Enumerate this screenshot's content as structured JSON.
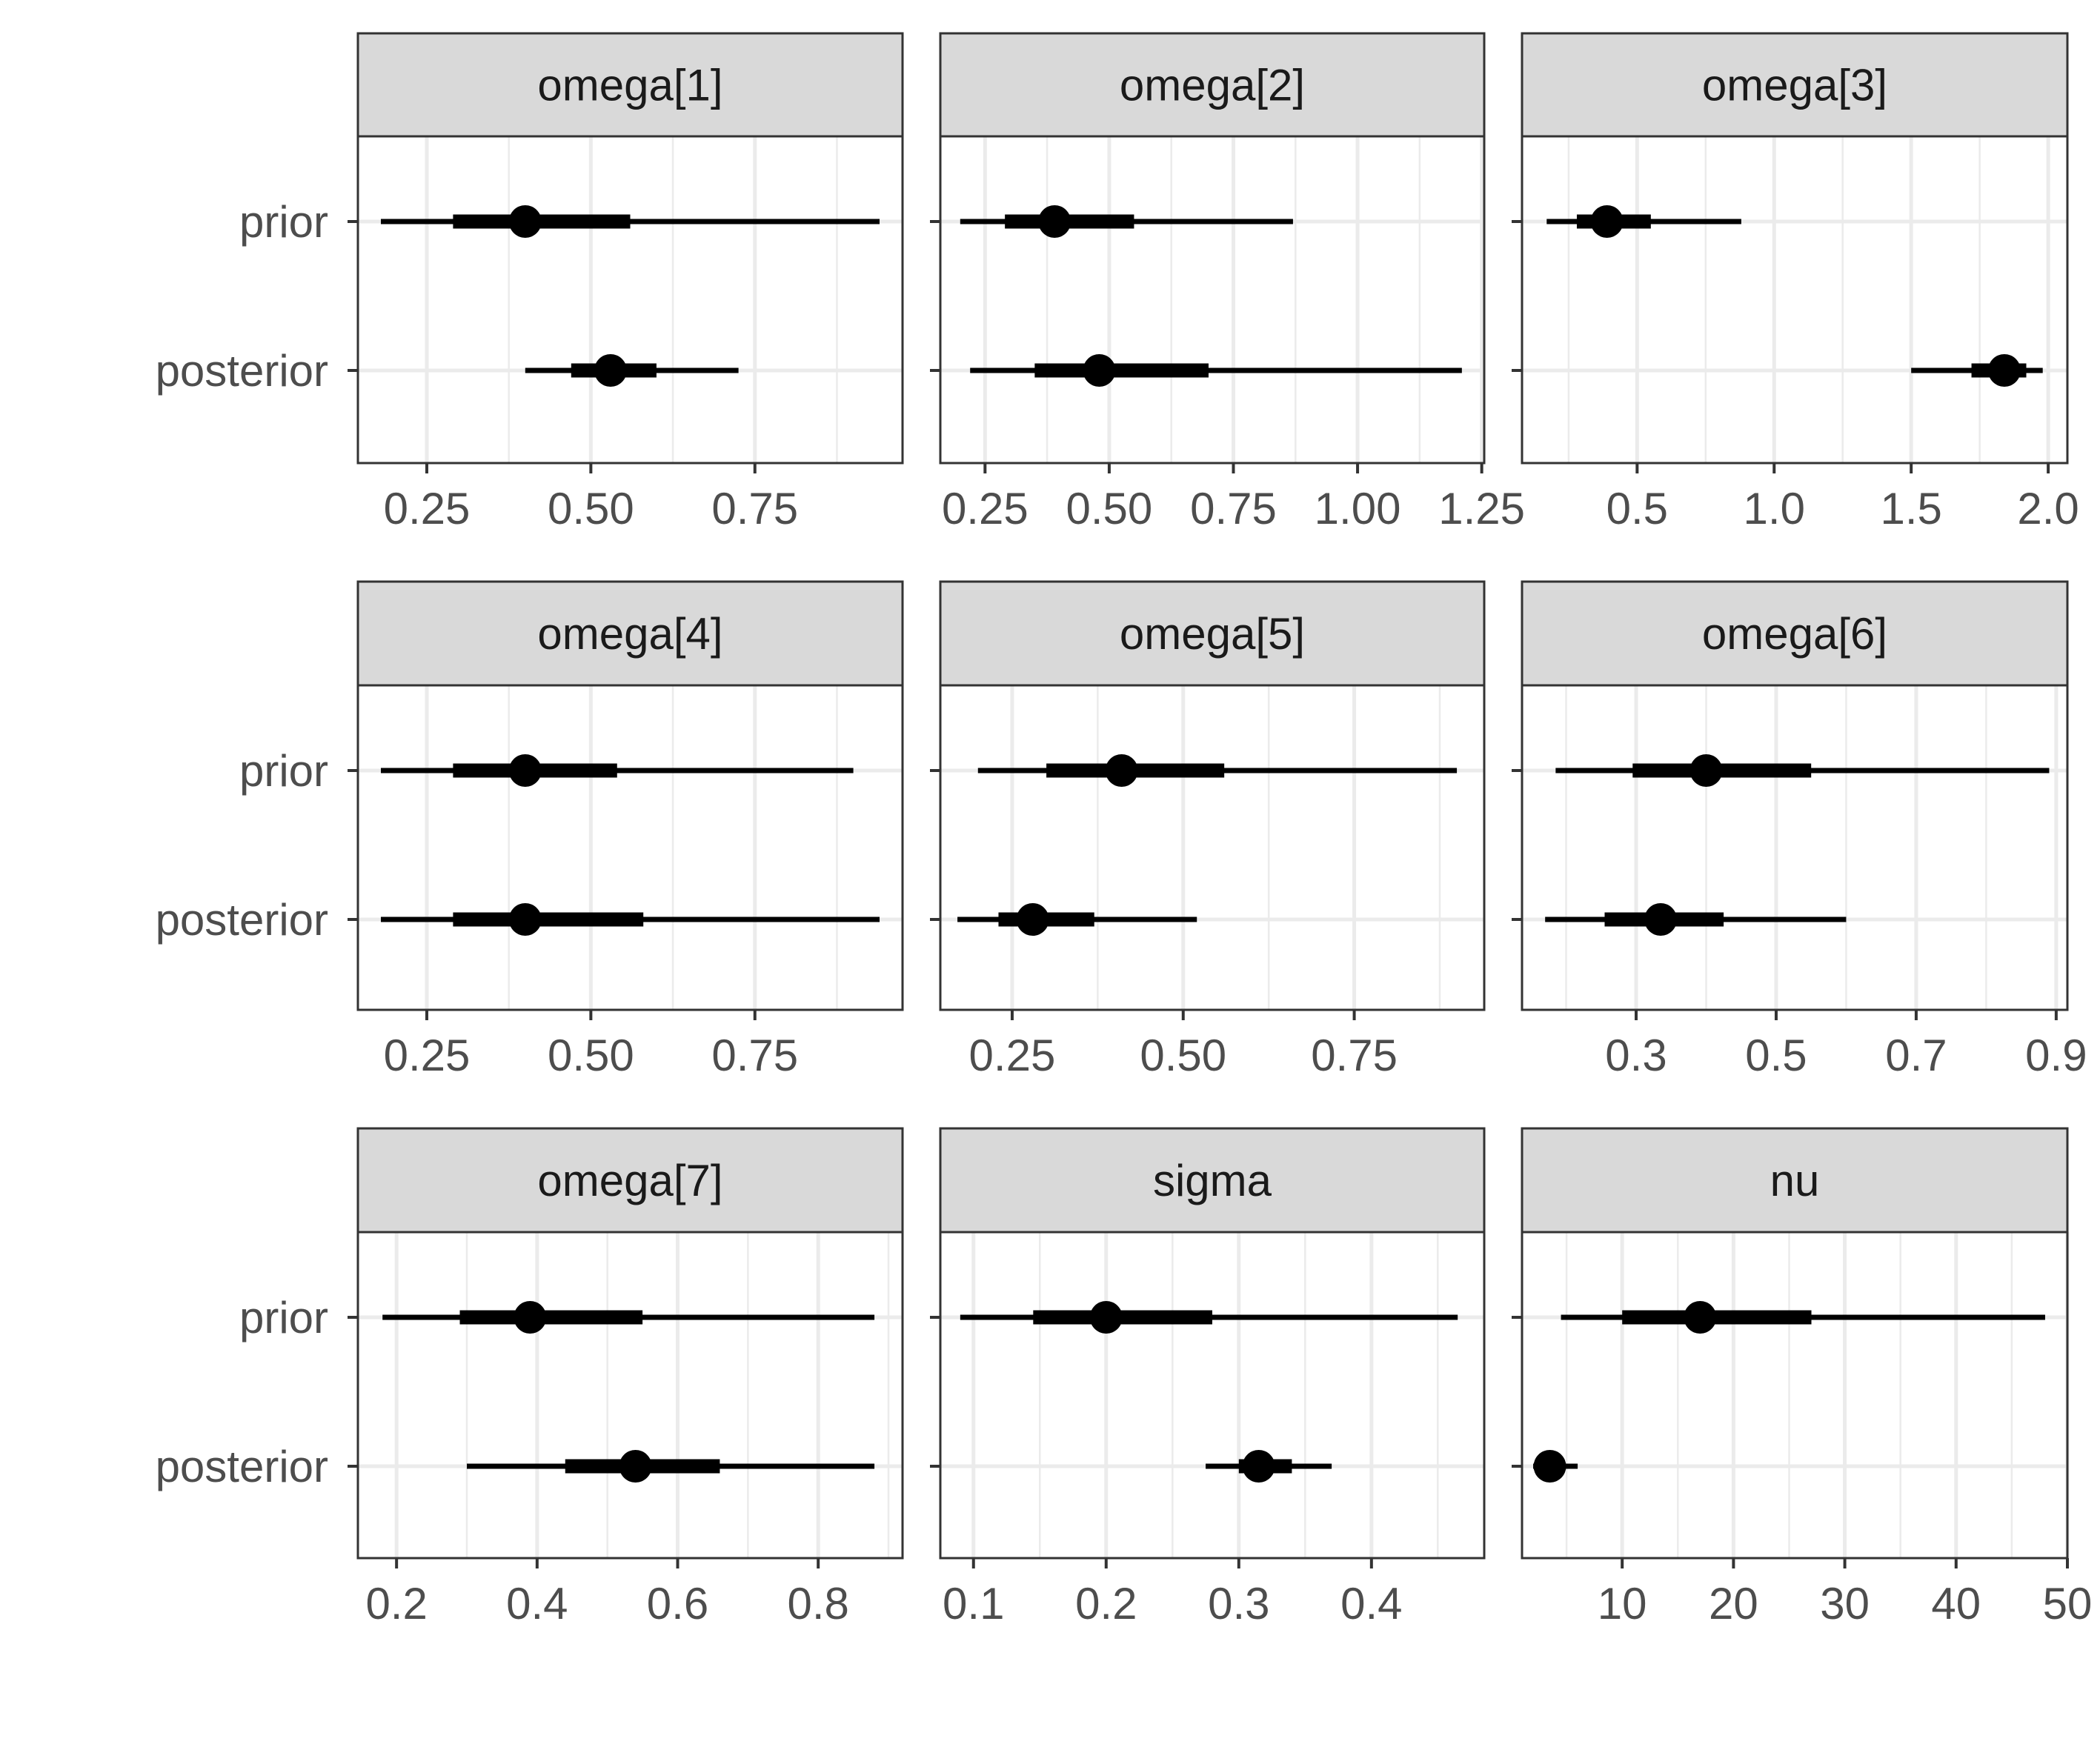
{
  "chart_data": {
    "type": "interval",
    "layout": {
      "rows": 3,
      "cols": 3
    },
    "y_categories": [
      "prior",
      "posterior"
    ],
    "grid": true,
    "colors": {
      "strip_fill": "#d9d9d9",
      "panel_border": "#333333",
      "grid": "#ebebeb",
      "mark": "#000000",
      "tick_text": "#4d4d4d",
      "strip_text": "#1a1a1a"
    },
    "panels": [
      {
        "title": "omega[1]",
        "xlim": [
          0.145,
          0.975
        ],
        "xticks": [
          "0.25",
          "0.50",
          "0.75"
        ],
        "tick_values": [
          0.25,
          0.5,
          0.75
        ],
        "intervals": [
          {
            "label": "prior",
            "outer": [
              0.18,
              0.94
            ],
            "inner": [
              0.29,
              0.56
            ],
            "point": 0.4
          },
          {
            "label": "posterior",
            "outer": [
              0.4,
              0.725
            ],
            "inner": [
              0.47,
              0.6
            ],
            "point": 0.53
          }
        ]
      },
      {
        "title": "omega[2]",
        "xlim": [
          0.16,
          1.255
        ],
        "xticks": [
          "0.25",
          "0.50",
          "0.75",
          "1.00",
          "1.25"
        ],
        "tick_values": [
          0.25,
          0.5,
          0.75,
          1.0,
          1.25
        ],
        "intervals": [
          {
            "label": "prior",
            "outer": [
              0.2,
              0.87
            ],
            "inner": [
              0.29,
              0.55
            ],
            "point": 0.39
          },
          {
            "label": "posterior",
            "outer": [
              0.22,
              1.21
            ],
            "inner": [
              0.35,
              0.7
            ],
            "point": 0.48
          }
        ]
      },
      {
        "title": "omega[3]",
        "xlim": [
          0.08,
          2.07
        ],
        "xticks": [
          "0.5",
          "1.0",
          "1.5",
          "2.0"
        ],
        "tick_values": [
          0.5,
          1.0,
          1.5,
          2.0
        ],
        "intervals": [
          {
            "label": "prior",
            "outer": [
              0.17,
              0.88
            ],
            "inner": [
              0.28,
              0.55
            ],
            "point": 0.39
          },
          {
            "label": "posterior",
            "outer": [
              1.5,
              1.98
            ],
            "inner": [
              1.72,
              1.92
            ],
            "point": 1.84
          }
        ]
      },
      {
        "title": "omega[4]",
        "xlim": [
          0.145,
          0.975
        ],
        "xticks": [
          "0.25",
          "0.50",
          "0.75"
        ],
        "tick_values": [
          0.25,
          0.5,
          0.75
        ],
        "intervals": [
          {
            "label": "prior",
            "outer": [
              0.18,
              0.9
            ],
            "inner": [
              0.29,
              0.54
            ],
            "point": 0.4
          },
          {
            "label": "posterior",
            "outer": [
              0.18,
              0.94
            ],
            "inner": [
              0.29,
              0.58
            ],
            "point": 0.4
          }
        ]
      },
      {
        "title": "omega[5]",
        "xlim": [
          0.145,
          0.94
        ],
        "xticks": [
          "0.25",
          "0.50",
          "0.75"
        ],
        "tick_values": [
          0.25,
          0.5,
          0.75
        ],
        "intervals": [
          {
            "label": "prior",
            "outer": [
              0.2,
              0.9
            ],
            "inner": [
              0.3,
              0.56
            ],
            "point": 0.41
          },
          {
            "label": "posterior",
            "outer": [
              0.17,
              0.52
            ],
            "inner": [
              0.23,
              0.37
            ],
            "point": 0.28
          }
        ]
      },
      {
        "title": "omega[6]",
        "xlim": [
          0.137,
          0.916
        ],
        "xticks": [
          "0.3",
          "0.5",
          "0.7",
          "0.9"
        ],
        "tick_values": [
          0.3,
          0.5,
          0.7,
          0.9
        ],
        "intervals": [
          {
            "label": "prior",
            "outer": [
              0.185,
              0.89
            ],
            "inner": [
              0.295,
              0.55
            ],
            "point": 0.4
          },
          {
            "label": "posterior",
            "outer": [
              0.17,
              0.6
            ],
            "inner": [
              0.255,
              0.425
            ],
            "point": 0.335
          }
        ]
      },
      {
        "title": "omega[7]",
        "xlim": [
          0.145,
          0.92
        ],
        "xticks": [
          "0.2",
          "0.4",
          "0.6",
          "0.8"
        ],
        "tick_values": [
          0.2,
          0.4,
          0.6,
          0.8
        ],
        "intervals": [
          {
            "label": "prior",
            "outer": [
              0.18,
              0.88
            ],
            "inner": [
              0.29,
              0.55
            ],
            "point": 0.39
          },
          {
            "label": "posterior",
            "outer": [
              0.3,
              0.88
            ],
            "inner": [
              0.44,
              0.66
            ],
            "point": 0.54
          }
        ]
      },
      {
        "title": "sigma",
        "xlim": [
          0.075,
          0.485
        ],
        "xticks": [
          "0.1",
          "0.2",
          "0.3",
          "0.4"
        ],
        "tick_values": [
          0.1,
          0.2,
          0.3,
          0.4
        ],
        "intervals": [
          {
            "label": "prior",
            "outer": [
              0.09,
              0.465
            ],
            "inner": [
              0.145,
              0.28
            ],
            "point": 0.2
          },
          {
            "label": "posterior",
            "outer": [
              0.275,
              0.37
            ],
            "inner": [
              0.3,
              0.34
            ],
            "point": 0.315
          }
        ]
      },
      {
        "title": "nu",
        "xlim": [
          1.0,
          50.0
        ],
        "xticks": [
          "10",
          "20",
          "30",
          "40",
          "50"
        ],
        "tick_values": [
          10,
          20,
          30,
          40,
          50
        ],
        "intervals": [
          {
            "label": "prior",
            "outer": [
              4.5,
              48.0
            ],
            "inner": [
              10.0,
              27.0
            ],
            "point": 17.0
          },
          {
            "label": "posterior",
            "outer": [
              2.0,
              6.0
            ],
            "inner": [
              2.5,
              4.5
            ],
            "point": 3.5
          }
        ]
      }
    ]
  }
}
